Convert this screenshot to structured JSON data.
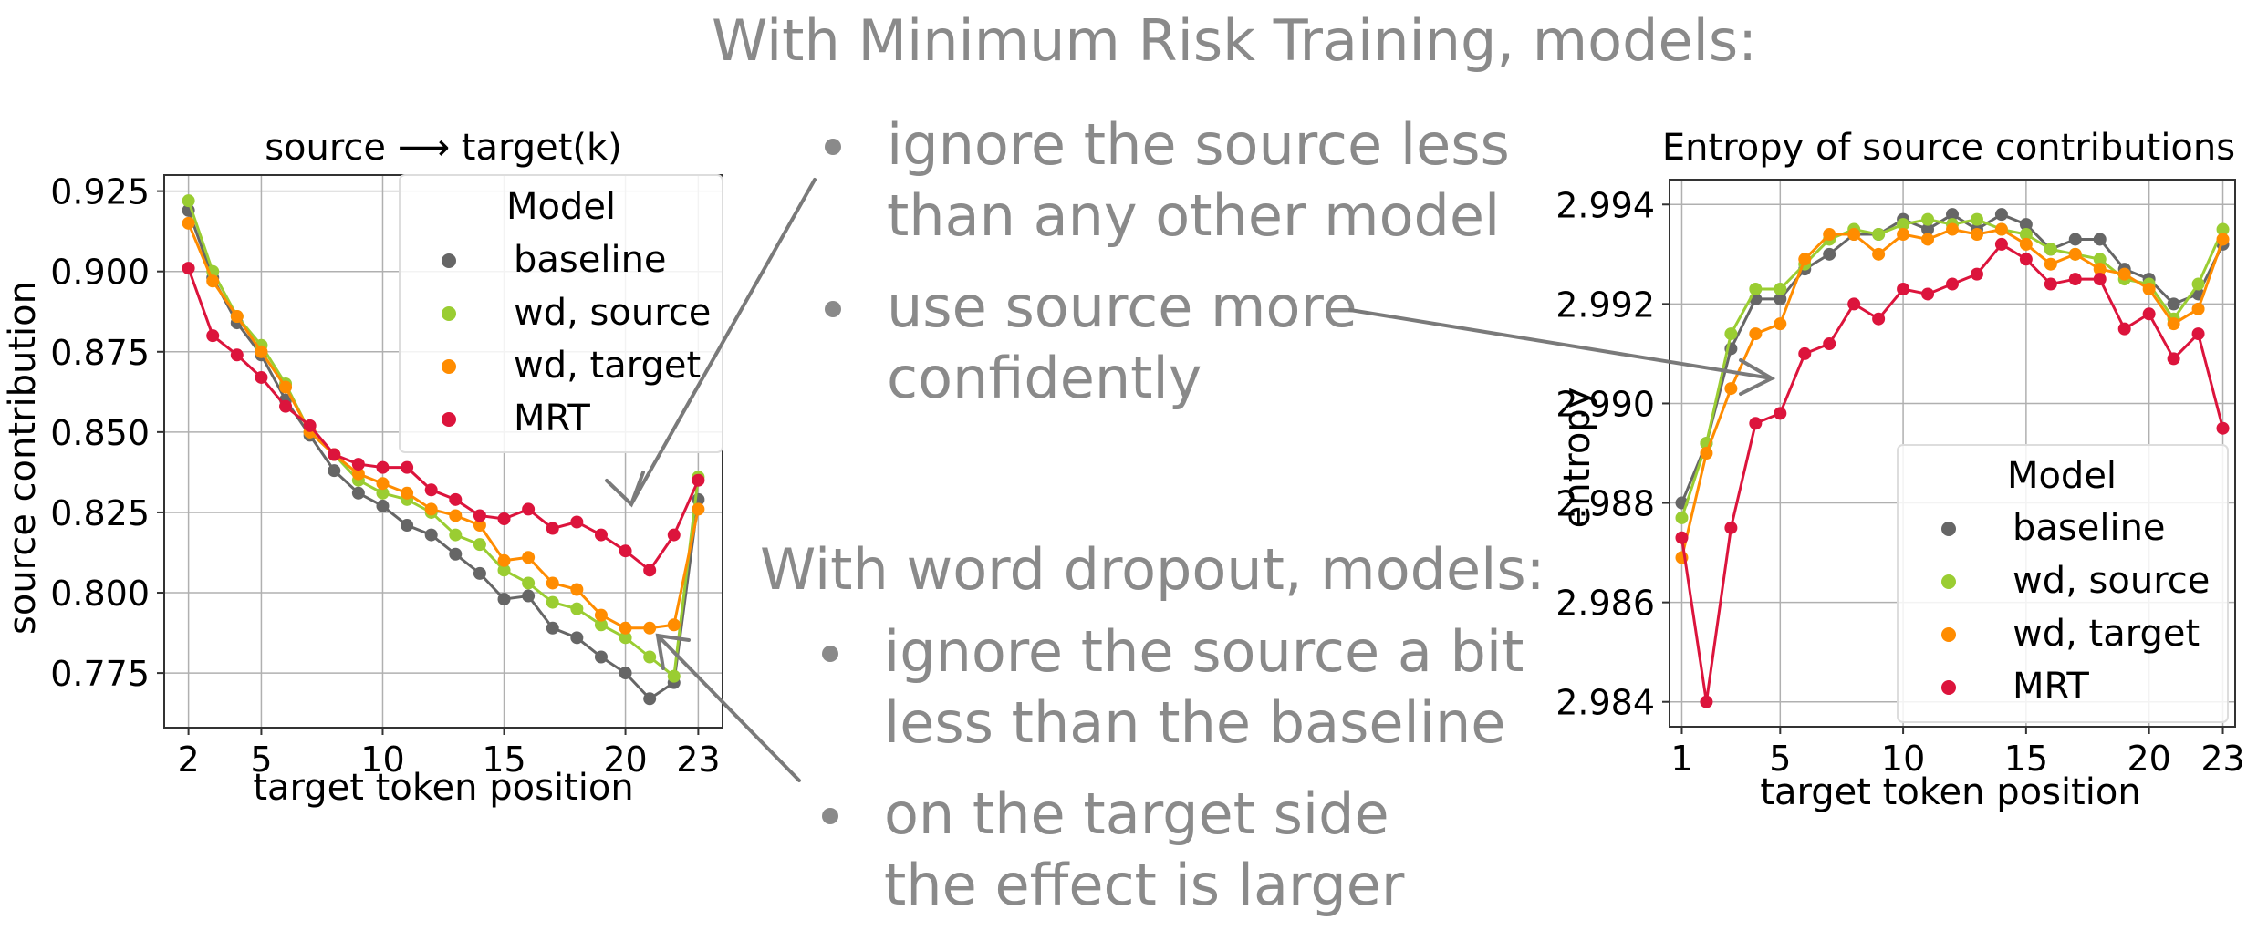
{
  "slide": {
    "headline_mrt": "With Minimum Risk Training, models:",
    "bullets_mrt": [
      "ignore the source less\nthan any other model",
      "use source more\nconfidently"
    ],
    "headline_wd": "With word dropout, models:",
    "bullets_wd": [
      "ignore the source a bit\nless than the baseline",
      "on the target side\nthe effect is larger"
    ],
    "arrow_color": "#7a7a7a"
  },
  "chart_data": [
    {
      "type": "line",
      "title": "source ⟶ target(k)",
      "xlabel": "target token position",
      "ylabel": "source contribution",
      "xlim": [
        1,
        24
      ],
      "ylim": [
        0.758,
        0.93
      ],
      "xticks": [
        2,
        5,
        10,
        15,
        20,
        23
      ],
      "yticks": [
        0.775,
        0.8,
        0.825,
        0.85,
        0.875,
        0.9,
        0.925
      ],
      "ytick_labels": [
        "0.775",
        "0.800",
        "0.825",
        "0.850",
        "0.875",
        "0.900",
        "0.925"
      ],
      "grid": true,
      "legend": {
        "title": "Model",
        "placement": "top-right"
      },
      "x": [
        2,
        3,
        4,
        5,
        6,
        7,
        8,
        9,
        10,
        11,
        12,
        13,
        14,
        15,
        16,
        17,
        18,
        19,
        20,
        21,
        22,
        23
      ],
      "series": [
        {
          "name": "baseline",
          "color": "#666666",
          "values": [
            0.919,
            0.898,
            0.884,
            0.874,
            0.86,
            0.849,
            0.838,
            0.831,
            0.827,
            0.821,
            0.818,
            0.812,
            0.806,
            0.798,
            0.799,
            0.789,
            0.786,
            0.78,
            0.775,
            0.767,
            0.772,
            0.829
          ]
        },
        {
          "name": "wd, source",
          "color": "#9acd32",
          "values": [
            0.922,
            0.9,
            0.886,
            0.877,
            0.865,
            0.85,
            0.843,
            0.835,
            0.831,
            0.829,
            0.825,
            0.818,
            0.815,
            0.807,
            0.803,
            0.797,
            0.795,
            0.79,
            0.786,
            0.78,
            0.774,
            0.836
          ]
        },
        {
          "name": "wd, target",
          "color": "#ff8c00",
          "values": [
            0.915,
            0.897,
            0.886,
            0.875,
            0.864,
            0.85,
            0.843,
            0.837,
            0.834,
            0.831,
            0.826,
            0.824,
            0.821,
            0.81,
            0.811,
            0.803,
            0.801,
            0.793,
            0.789,
            0.789,
            0.79,
            0.826
          ]
        },
        {
          "name": "MRT",
          "color": "#dc143c",
          "values": [
            0.901,
            0.88,
            0.874,
            0.867,
            0.858,
            0.852,
            0.843,
            0.84,
            0.839,
            0.839,
            0.832,
            0.829,
            0.824,
            0.823,
            0.826,
            0.82,
            0.822,
            0.818,
            0.813,
            0.807,
            0.818,
            0.835
          ]
        }
      ]
    },
    {
      "type": "line",
      "title": "Entropy of source contributions",
      "xlabel": "target token position",
      "ylabel": "entropy",
      "xlim": [
        0.5,
        23.5
      ],
      "ylim": [
        2.9835,
        2.9945
      ],
      "xticks": [
        1,
        5,
        10,
        15,
        20,
        23
      ],
      "yticks": [
        2.984,
        2.986,
        2.988,
        2.99,
        2.992,
        2.994
      ],
      "ytick_labels": [
        "2.984",
        "2.986",
        "2.988",
        "2.990",
        "2.992",
        "2.994"
      ],
      "grid": true,
      "legend": {
        "title": "Model",
        "placement": "bottom-right"
      },
      "x": [
        1,
        2,
        3,
        4,
        5,
        6,
        7,
        8,
        9,
        10,
        11,
        12,
        13,
        14,
        15,
        16,
        17,
        18,
        19,
        20,
        21,
        22,
        23
      ],
      "series": [
        {
          "name": "baseline",
          "color": "#666666",
          "values": [
            2.988,
            2.9892,
            2.9911,
            2.9921,
            2.9921,
            2.9927,
            2.993,
            2.9934,
            2.9934,
            2.9937,
            2.9935,
            2.9938,
            2.9935,
            2.9938,
            2.9936,
            2.9931,
            2.9933,
            2.9933,
            2.9927,
            2.9925,
            2.992,
            2.9922,
            2.9932
          ]
        },
        {
          "name": "wd, source",
          "color": "#9acd32",
          "values": [
            2.9877,
            2.9892,
            2.9914,
            2.9923,
            2.9923,
            2.9928,
            2.9933,
            2.9935,
            2.9934,
            2.9936,
            2.9937,
            2.9936,
            2.9937,
            2.9935,
            2.9934,
            2.9931,
            2.993,
            2.9929,
            2.9925,
            2.9924,
            2.9917,
            2.9924,
            2.9935
          ]
        },
        {
          "name": "wd, target",
          "color": "#ff8c00",
          "values": [
            2.9869,
            2.989,
            2.9903,
            2.9914,
            2.9916,
            2.9929,
            2.9934,
            2.9934,
            2.993,
            2.9934,
            2.9933,
            2.9935,
            2.9934,
            2.9935,
            2.9932,
            2.9928,
            2.993,
            2.9927,
            2.9926,
            2.9923,
            2.9916,
            2.9919,
            2.9933
          ]
        },
        {
          "name": "MRT",
          "color": "#dc143c",
          "values": [
            2.9873,
            2.984,
            2.9875,
            2.9896,
            2.9898,
            2.991,
            2.9912,
            2.992,
            2.9917,
            2.9923,
            2.9922,
            2.9924,
            2.9926,
            2.9932,
            2.9929,
            2.9924,
            2.9925,
            2.9925,
            2.9915,
            2.9918,
            2.9909,
            2.9914,
            2.9895
          ]
        }
      ]
    }
  ]
}
